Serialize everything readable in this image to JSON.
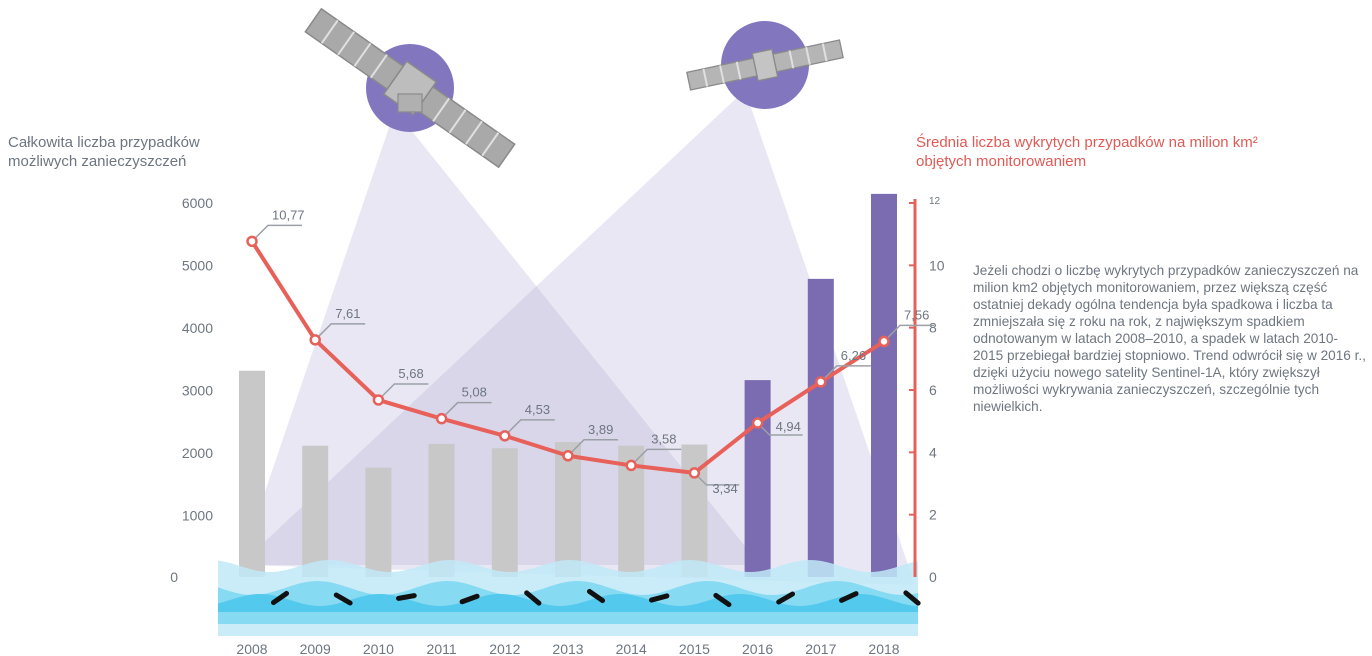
{
  "left_axis_title": "Całkowita liczba przypadków możliwych zanieczyszczeń",
  "right_axis_title": "Średnia liczba wykrytych przypadków na milion km²",
  "right_axis_title_line2": "objętych monitorowaniem",
  "description": "Jeżeli chodzi o liczbę wykrytych przypadków zanieczyszczeń na milion km2 objętych monitorowaniem, przez większą część ostatniej dekady ogólna tendencja była spadkowa i liczba ta zmniejszała się z roku na rok, z największym spadkiem odnotowanym w latach 2008–2010, a spadek w latach 2010-2015 przebiegał bardziej stopniowo. Trend odwrócił się w 2016 r., dzięki użyciu nowego satelity Sentinel-1A, który zwiększył możliwości wykrywania zanieczyszczeń, szczególnie tych niewielkich.",
  "colors": {
    "bar_old": "#c8c8c8",
    "bar_new": "#7b6bb1",
    "line": "#e8605a",
    "axis_text": "#6e7680",
    "right_axis_text": "#e05b55",
    "satellite_circle": "#8276bf",
    "beam": "#b7b0d8",
    "water_light": "#bfe9f7",
    "water_mid": "#86daf2",
    "water_dark": "#54c9ee"
  },
  "icons": [
    "satellite-left-icon",
    "satellite-right-icon",
    "oil-spill-icon"
  ],
  "chart_data": {
    "type": "bar",
    "categories": [
      "2008",
      "2009",
      "2010",
      "2011",
      "2012",
      "2013",
      "2014",
      "2015",
      "2016",
      "2017",
      "2018"
    ],
    "series": [
      {
        "values": [
          3300,
          2100,
          1750,
          2130,
          2060,
          2160,
          2100,
          2120,
          3150,
          4770,
          6130
        ],
        "axis": "left",
        "type": "bar",
        "highlight_from": "2016"
      },
      {
        "values": [
          10.77,
          7.61,
          5.68,
          5.08,
          4.53,
          3.89,
          3.58,
          3.34,
          4.94,
          6.26,
          7.56
        ],
        "labels": [
          "10,77",
          "7,61",
          "5,68",
          "5,08",
          "4,53",
          "3,89",
          "3,58",
          "3,34",
          "4,94",
          "6,26",
          "7,56"
        ],
        "axis": "right",
        "type": "line"
      }
    ],
    "left_axis": {
      "ylim": [
        0,
        6500
      ],
      "ticks": [
        "0",
        "1000",
        "2000",
        "3000",
        "4000",
        "5000",
        "6000"
      ]
    },
    "right_axis": {
      "ylim": [
        0,
        12
      ],
      "ticks": [
        "0",
        "2",
        "4",
        "6",
        "8",
        "10",
        "12"
      ]
    },
    "grid": false,
    "legend": "none"
  }
}
